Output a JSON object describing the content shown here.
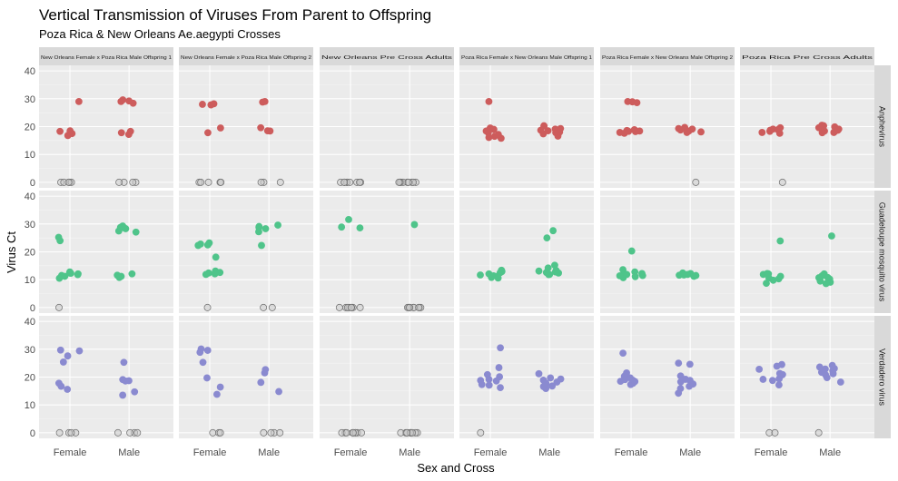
{
  "chart_data": {
    "type": "scatter",
    "title": "Vertical Transmission of Viruses From Parent to Offspring",
    "subtitle": "Poza Rica & New Orleans Ae.aegypti Crosses",
    "xlabel": "Sex and Cross",
    "ylabel": "Virus Ct",
    "categories": [
      "Female",
      "Male"
    ],
    "ylim": [
      -2,
      42
    ],
    "yticks": [
      0,
      10,
      20,
      30,
      40
    ],
    "columns": [
      "New Orleans Female x Poza Rica Male Offspring 1",
      "New Orleans Female x Poza Rica Male Offspring 2",
      "New Orleans Pre Cross Adults",
      "Poza Rica Female x New Orleans Male Offspring 1",
      "Poza Rica Female x New Orleans Male Offspring 2",
      "Poza Rica Pre Cross Adults"
    ],
    "rows": [
      "Anphevirus",
      "Guadeloupe mosquito virus",
      "Verdadero virus"
    ],
    "colors": {
      "Anphevirus": "#cd5c5c",
      "Guadeloupe mosquito virus": "#4fc48a",
      "Verdadero virus": "#8a8ad0",
      "negative": "#c8c8c8"
    },
    "panels": [
      [
        {
          "female": [
            18.5,
            18.3,
            29,
            17.5,
            16.8
          ],
          "female_zero": 5,
          "male": [
            29.2,
            29.6,
            28.4,
            29,
            18.3,
            17.2,
            17.8
          ],
          "male_zero": 4
        },
        {
          "female": [
            19.5,
            28,
            17.8,
            27.8,
            28.2
          ],
          "female_zero": 5,
          "male": [
            18.5,
            28.8,
            18.4,
            29,
            19.6
          ],
          "male_zero": 3
        },
        {
          "female": [],
          "female_zero": 9,
          "male": [],
          "male_zero": 9
        },
        {
          "female": [
            17.8,
            16.5,
            19,
            15.8,
            18.4,
            29,
            19.5,
            16.1,
            17.2,
            18.8
          ],
          "female_zero": 0,
          "male": [
            18.5,
            20.3,
            17.4,
            19.1,
            18.7,
            20.2,
            17.8,
            16.6,
            19.3,
            18
          ],
          "male_zero": 0
        },
        {
          "female": [
            18.4,
            28.6,
            18.9,
            28.9,
            17.9,
            18.6,
            29,
            17.6,
            18.3,
            18.2
          ],
          "female_zero": 0,
          "male": [
            19.7,
            18.1,
            19.3,
            17.9,
            19.1,
            18.4,
            18.8
          ],
          "male_zero": 1
        },
        {
          "female": [
            18.3,
            17.6,
            19.1,
            18.7,
            17.9,
            18.9,
            19.6
          ],
          "female_zero": 1,
          "male": [
            18.4,
            19.6,
            20.5,
            18.3,
            19.9,
            17.9,
            19.1,
            20.3,
            18.7,
            17.8
          ],
          "male_zero": 0
        }
      ],
      [
        {
          "female": [
            24,
            25.2,
            12.3,
            11.8,
            12.1,
            11.5,
            12.8,
            10.5,
            11.2,
            12.4
          ],
          "female_zero": 1,
          "male": [
            27.5,
            28.3,
            29.3,
            28.6,
            27.1,
            28.8,
            11.2,
            11.6,
            12.1,
            10.8
          ],
          "male_zero": 0
        },
        {
          "female": [
            22.8,
            23.2,
            22.5,
            22.3,
            18.1,
            12.4,
            13.1,
            11.9,
            12.6,
            12.1
          ],
          "female_zero": 1,
          "male": [
            28.3,
            28.8,
            29.6,
            29.1,
            27.2,
            22.3
          ],
          "male_zero": 2
        },
        {
          "female": [
            31.6,
            28.9,
            28.6
          ],
          "female_zero": 8,
          "male": [
            29.8
          ],
          "male_zero": 9
        },
        {
          "female": [
            11.2,
            12.5,
            10.8,
            12.9,
            11.4,
            10.6,
            12.1,
            11.7,
            13.4,
            11.1
          ],
          "female_zero": 0,
          "male": [
            27.6,
            25,
            12.8,
            13.3,
            11.9,
            14.2,
            12.4,
            15.2,
            13.1,
            12.6,
            11.8
          ],
          "male_zero": 0
        },
        {
          "female": [
            11.5,
            12.8,
            13.6,
            11.1,
            10.7,
            12.3,
            20.3,
            11.9,
            11.4,
            12.2
          ],
          "female_zero": 0,
          "male": [
            12.2,
            11.6,
            11.9,
            12.4,
            11.2,
            11.7,
            11.5
          ],
          "male_zero": 0
        },
        {
          "female": [
            8.7,
            11.2,
            9.8,
            12.1,
            10.3,
            11.9,
            12.2,
            10.6,
            23.9
          ],
          "female_zero": 0,
          "male": [
            25.7,
            9.5,
            11.4,
            10.2,
            12.1,
            10.8,
            9.1,
            8.6,
            10.7
          ],
          "male_zero": 0
        }
      ],
      [
        {
          "female": [
            29.4,
            29.7,
            27.6,
            25.4,
            15.6,
            17.8,
            16.7
          ],
          "female_zero": 4,
          "male": [
            25.3,
            18.6,
            19.1,
            14.7,
            18.7,
            13.5
          ],
          "male_zero": 4
        },
        {
          "female": [
            19.7,
            16.4,
            13.8,
            29.6,
            28.9,
            25.3,
            30.1
          ],
          "female_zero": 3,
          "male": [
            22.7,
            21.5,
            18.1,
            14.8
          ],
          "male_zero": 4
        },
        {
          "female": [],
          "female_zero": 10,
          "male": [],
          "male_zero": 11
        },
        {
          "female": [
            17.3,
            20.9,
            16.2,
            18.6,
            30.5,
            17.1,
            23.4,
            19.2,
            18.8,
            20.1
          ],
          "female_zero": 1,
          "male": [
            17.4,
            16.6,
            18.9,
            21.2,
            17.8,
            15.9,
            19.3,
            18.2,
            16.8,
            19.7
          ],
          "male_zero": 0
        },
        {
          "female": [
            18.5,
            19.7,
            28.6,
            17.3,
            21.5,
            19.1,
            17.6,
            18.9,
            20.3,
            17.8,
            18.4
          ],
          "female_zero": 0,
          "male": [
            18.8,
            20.4,
            14.2,
            24.6,
            16.7,
            25,
            17.5,
            18.3,
            15.9,
            19.2
          ],
          "male_zero": 0
        },
        {
          "female": [
            24.5,
            21.3,
            19.2,
            22.8,
            17.2,
            20.9,
            19.4,
            23.9,
            18.8,
            20.5
          ],
          "female_zero": 2,
          "male": [
            20.8,
            22.3,
            23.6,
            21.2,
            19.8,
            22.9,
            18.2,
            24.2,
            21.7,
            23.1
          ],
          "male_zero": 1
        }
      ]
    ],
    "grid": true,
    "legend": "none"
  }
}
